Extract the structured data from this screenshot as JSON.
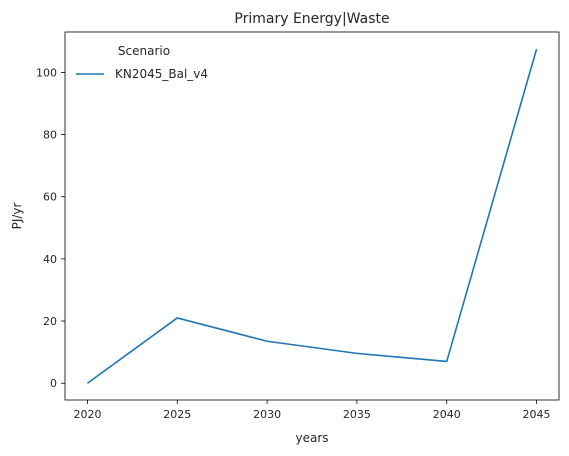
{
  "chart_data": {
    "type": "line",
    "title": "Primary Energy|Waste",
    "xlabel": "years",
    "ylabel": "PJ/yr",
    "x": [
      2020,
      2025,
      2030,
      2035,
      2040,
      2045
    ],
    "series": [
      {
        "name": "KN2045_Bal_v4",
        "color": "#1f77b4",
        "values": [
          0,
          21.0,
          13.5,
          9.6,
          7.0,
          107.5
        ]
      }
    ],
    "xticks": [
      2020,
      2025,
      2030,
      2035,
      2040,
      2045
    ],
    "yticks": [
      0,
      20,
      40,
      60,
      80,
      100
    ],
    "xlim": [
      2018.75,
      2046.25
    ],
    "ylim": [
      -5.4,
      113.0
    ],
    "grid": false,
    "legend": {
      "title": "Scenario",
      "placement": "top-left"
    }
  }
}
